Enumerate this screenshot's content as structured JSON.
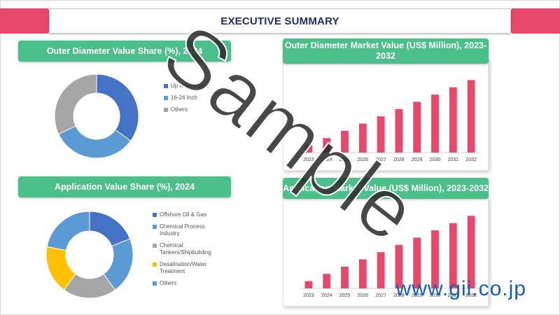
{
  "header": {
    "title": "EXECUTIVE SUMMARY"
  },
  "panels": {
    "outer_share_title": "Outer Diameter Value Share (%), 2024",
    "outer_market_title": "Outer Diameter Market Value (US$ Million), 2023-2032",
    "app_share_title": "Application Value Share (%), 2024",
    "app_market_title": "Application Market Value (US$ Million), 2023-2032"
  },
  "watermark": {
    "text": "Sample",
    "site": "www.gii.co.jp"
  },
  "colors": {
    "accent_pink": "#e8496b",
    "panel_green": "#4bbf8a",
    "title_navy": "#1f2d6b",
    "bar_pink": "#e8496b"
  },
  "chart_data": [
    {
      "type": "pie",
      "title": "Outer Diameter Value Share (%), 2024",
      "donut": true,
      "labels": [
        "Up to 16 Inch",
        "16-24 Inch",
        "Others"
      ],
      "values": [
        35,
        33,
        32
      ],
      "colors": [
        "#4472c4",
        "#5b9bd5",
        "#a5a5a5"
      ],
      "legend_position": "right"
    },
    {
      "type": "bar",
      "title": "Outer Diameter Market Value (US$ Million), 2023-2032",
      "categories": [
        "2023",
        "2024",
        "2025",
        "2026",
        "2027",
        "2028",
        "2029",
        "2030",
        "2031",
        "2032"
      ],
      "values": [
        10,
        20,
        30,
        40,
        50,
        60,
        70,
        80,
        90,
        100
      ],
      "ylim": [
        0,
        110
      ],
      "color": "#e8496b",
      "grid": false
    },
    {
      "type": "pie",
      "title": "Application Value Share (%), 2024",
      "donut": true,
      "labels": [
        "Offshore Oil & Gas",
        "Chemical Process Industry",
        "Chemical Tankers/Shipbuilding",
        "Desalination/Water Treatment",
        "Others"
      ],
      "values": [
        19,
        21,
        20,
        18,
        22
      ],
      "colors": [
        "#4472c4",
        "#5b9bd5",
        "#a5a5a5",
        "#ffc000",
        "#5b9bd5"
      ],
      "legend_position": "right"
    },
    {
      "type": "bar",
      "title": "Application Market Value (US$ Million), 2023-2032",
      "categories": [
        "2023",
        "2024",
        "2025",
        "2026",
        "2027",
        "2028",
        "2029",
        "2030",
        "2031",
        "2032"
      ],
      "values": [
        10,
        20,
        30,
        40,
        50,
        60,
        70,
        80,
        90,
        100
      ],
      "ylim": [
        0,
        110
      ],
      "color": "#e8496b",
      "grid": false
    }
  ]
}
